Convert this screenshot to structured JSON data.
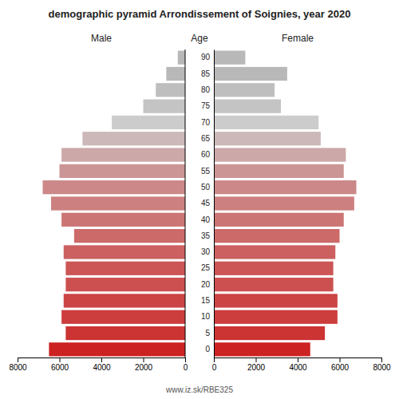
{
  "chart_data": {
    "type": "bar",
    "orientation": "horizontal",
    "title": "demographic pyramid Arrondissement of Soignies, year 2020",
    "source": "www.iz.sk/RBE325",
    "ylabel": "Age",
    "categories": [
      "0",
      "5",
      "10",
      "15",
      "20",
      "25",
      "30",
      "35",
      "40",
      "45",
      "50",
      "55",
      "60",
      "65",
      "70",
      "75",
      "80",
      "85",
      "90"
    ],
    "series": [
      {
        "name": "Male",
        "values": [
          6500,
          5700,
          5900,
          5800,
          5700,
          5700,
          5800,
          5300,
          5900,
          6400,
          6800,
          6000,
          5900,
          4900,
          3500,
          2000,
          1400,
          900,
          350
        ]
      },
      {
        "name": "Female",
        "values": [
          4600,
          5300,
          5900,
          5900,
          5700,
          5700,
          5800,
          6000,
          6200,
          6700,
          6800,
          6200,
          6300,
          5100,
          5000,
          3200,
          2900,
          3500,
          1500
        ]
      }
    ],
    "colors": [
      "#cc2222",
      "#cc3333",
      "#cc3d3d",
      "#cc4444",
      "#cc5050",
      "#cc5555",
      "#cc6060",
      "#cc6a6a",
      "#cc7575",
      "#cc8080",
      "#cc8888",
      "#cc9595",
      "#cca8a8",
      "#ccb8b8",
      "#cccccc",
      "#c4c4c4",
      "#bebebe",
      "#b8b8b8",
      "#b8b8b8"
    ],
    "xlim": [
      0,
      8000
    ],
    "xticks": [
      0,
      2000,
      4000,
      6000,
      8000
    ],
    "grid": false
  }
}
